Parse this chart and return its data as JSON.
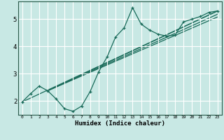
{
  "xlabel": "Humidex (Indice chaleur)",
  "bg_color": "#c8e8e4",
  "grid_color": "#ffffff",
  "line_color": "#1a6b5a",
  "xlim": [
    -0.5,
    23.5
  ],
  "ylim": [
    1.5,
    5.65
  ],
  "xticks": [
    0,
    1,
    2,
    3,
    4,
    5,
    6,
    7,
    8,
    9,
    10,
    11,
    12,
    13,
    14,
    15,
    16,
    17,
    18,
    19,
    20,
    21,
    22,
    23
  ],
  "yticks": [
    2,
    3,
    4,
    5
  ],
  "curve_x": [
    0,
    1,
    2,
    3,
    4,
    5,
    6,
    7,
    8,
    9,
    10,
    11,
    12,
    13,
    14,
    15,
    16,
    17,
    18,
    19,
    20,
    21,
    22,
    23
  ],
  "curve_y": [
    1.97,
    2.28,
    2.55,
    2.38,
    2.08,
    1.72,
    1.63,
    1.82,
    2.35,
    3.07,
    3.62,
    4.35,
    4.68,
    5.42,
    4.82,
    4.6,
    4.45,
    4.38,
    4.42,
    4.9,
    5.0,
    5.1,
    5.25,
    5.3
  ],
  "straight_lines": [
    {
      "x1": 3,
      "y1": 2.38,
      "x2": 23,
      "y2": 5.3
    },
    {
      "x1": 3,
      "y1": 2.38,
      "x2": 23,
      "y2": 5.18
    },
    {
      "x1": 3,
      "y1": 2.38,
      "x2": 23,
      "y2": 5.08
    },
    {
      "x1": 0,
      "y1": 1.97,
      "x2": 23,
      "y2": 5.3
    }
  ]
}
